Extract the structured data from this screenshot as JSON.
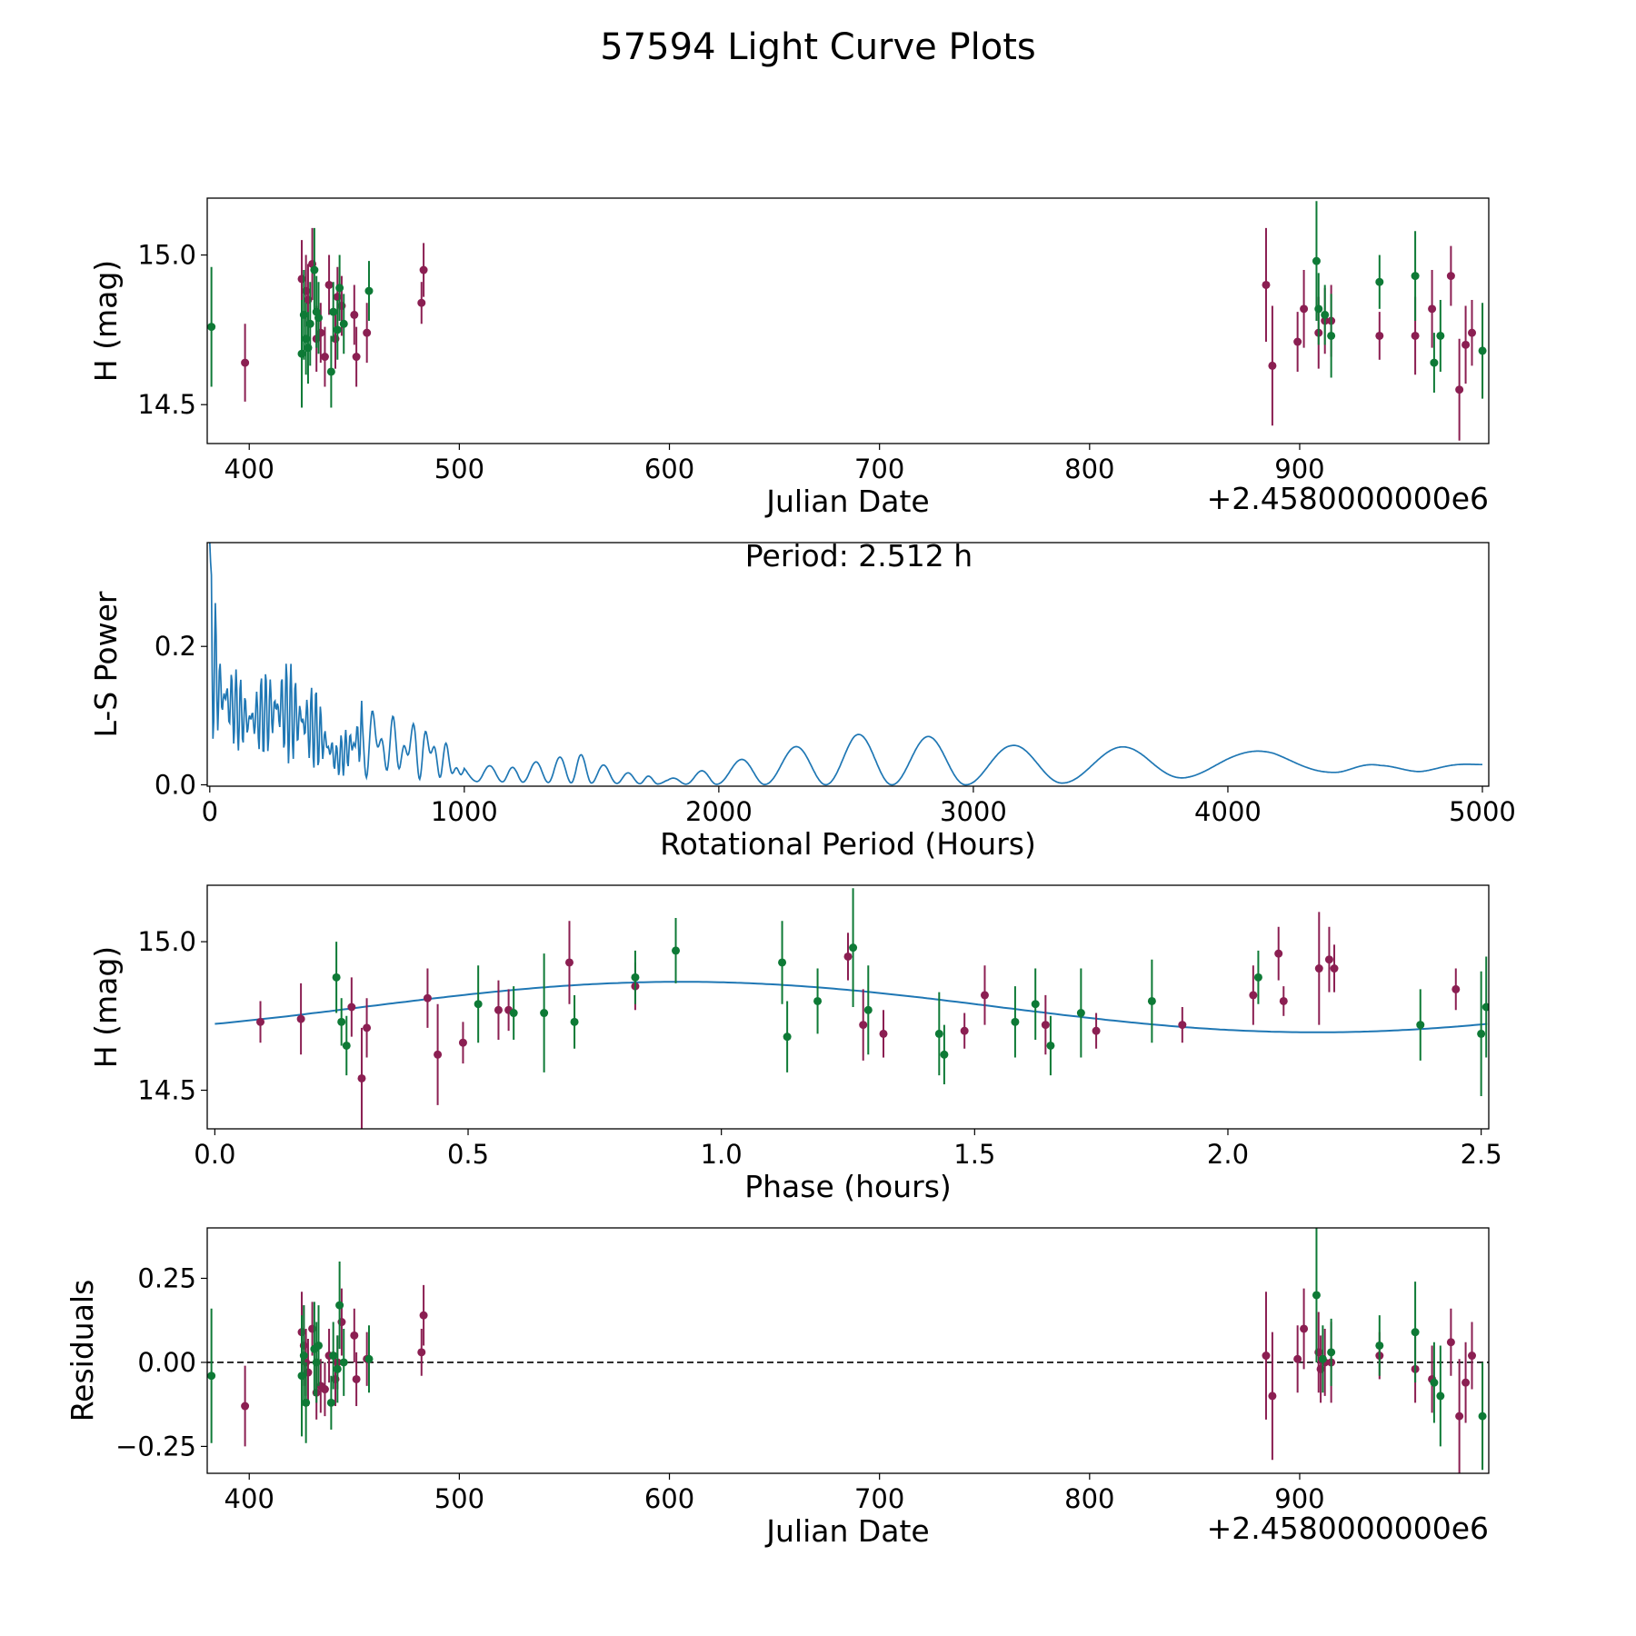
{
  "figure_title": "57594 Light Curve Plots",
  "colors": {
    "series_a": "#8b1f52",
    "series_b": "#0e7a36",
    "fit": "#1f77b4",
    "axes": "#000000"
  },
  "chart_data": [
    {
      "type": "scatter",
      "panel": "Light curve",
      "xlabel": "Julian Date",
      "ylabel": "H (mag)",
      "offset_label": "+2.4580000000e6",
      "xlim": [
        380,
        990
      ],
      "ylim": [
        14.37,
        15.19
      ],
      "xticks": [
        "400",
        "500",
        "600",
        "700",
        "800",
        "900"
      ],
      "yticks": [
        "14.5",
        "15.0"
      ],
      "series": [
        {
          "name": "maroon",
          "points": [
            [
              398,
              14.64,
              0.13
            ],
            [
              425,
              14.92,
              0.13
            ],
            [
              427,
              14.88,
              0.12
            ],
            [
              428,
              14.85,
              0.12
            ],
            [
              430,
              14.97,
              0.12
            ],
            [
              432,
              14.72,
              0.11
            ],
            [
              434,
              14.74,
              0.1
            ],
            [
              436,
              14.66,
              0.1
            ],
            [
              438,
              14.9,
              0.1
            ],
            [
              441,
              14.72,
              0.1
            ],
            [
              442,
              14.86,
              0.1
            ],
            [
              444,
              14.83,
              0.1
            ],
            [
              450,
              14.8,
              0.1
            ],
            [
              451,
              14.66,
              0.1
            ],
            [
              456,
              14.74,
              0.1
            ],
            [
              482,
              14.84,
              0.07
            ],
            [
              483,
              14.95,
              0.09
            ],
            [
              884,
              14.9,
              0.19
            ],
            [
              887,
              14.63,
              0.2
            ],
            [
              899,
              14.71,
              0.1
            ],
            [
              902,
              14.82,
              0.13
            ],
            [
              909,
              14.74,
              0.12
            ],
            [
              912,
              14.78,
              0.11
            ],
            [
              915,
              14.78,
              0.12
            ],
            [
              938,
              14.73,
              0.08
            ],
            [
              955,
              14.73,
              0.13
            ],
            [
              963,
              14.82,
              0.13
            ],
            [
              972,
              14.93,
              0.1
            ],
            [
              976,
              14.55,
              0.17
            ],
            [
              979,
              14.7,
              0.13
            ],
            [
              982,
              14.74,
              0.11
            ]
          ]
        },
        {
          "name": "green",
          "points": [
            [
              382,
              14.76,
              0.2
            ],
            [
              425,
              14.67,
              0.18
            ],
            [
              426,
              14.8,
              0.15
            ],
            [
              427,
              14.72,
              0.12
            ],
            [
              428,
              14.69,
              0.12
            ],
            [
              429,
              14.77,
              0.14
            ],
            [
              431,
              14.95,
              0.14
            ],
            [
              432,
              14.81,
              0.12
            ],
            [
              433,
              14.79,
              0.12
            ],
            [
              439,
              14.61,
              0.12
            ],
            [
              440,
              14.81,
              0.1
            ],
            [
              442,
              14.75,
              0.1
            ],
            [
              443,
              14.89,
              0.11
            ],
            [
              445,
              14.77,
              0.1
            ],
            [
              457,
              14.88,
              0.1
            ],
            [
              908,
              14.98,
              0.2
            ],
            [
              909,
              14.82,
              0.12
            ],
            [
              912,
              14.8,
              0.1
            ],
            [
              915,
              14.73,
              0.14
            ],
            [
              938,
              14.91,
              0.09
            ],
            [
              955,
              14.93,
              0.15
            ],
            [
              964,
              14.64,
              0.1
            ],
            [
              967,
              14.73,
              0.12
            ],
            [
              987,
              14.68,
              0.16
            ]
          ]
        }
      ]
    },
    {
      "type": "line",
      "panel": "Periodogram",
      "annotation": "Period: 2.512 h",
      "xlabel": "Rotational Period (Hours)",
      "ylabel": "L-S Power",
      "xlim": [
        -10,
        5025
      ],
      "ylim": [
        -0.002,
        0.35
      ],
      "xticks": [
        "0",
        "1000",
        "2000",
        "3000",
        "4000",
        "5000"
      ],
      "yticks": [
        "0.0",
        "0.2"
      ],
      "peak_power": 0.35,
      "envelope": [
        [
          0,
          0.35
        ],
        [
          40,
          0.21
        ],
        [
          100,
          0.17
        ],
        [
          150,
          0.14
        ],
        [
          280,
          0.19
        ],
        [
          420,
          0.14
        ],
        [
          500,
          0.06
        ],
        [
          600,
          0.135
        ],
        [
          700,
          0.1
        ],
        [
          850,
          0.095
        ],
        [
          1000,
          0.03
        ],
        [
          1200,
          0.025
        ],
        [
          1300,
          0.035
        ],
        [
          1450,
          0.045
        ],
        [
          1600,
          0.02
        ],
        [
          1800,
          0.008
        ],
        [
          1950,
          0.022
        ],
        [
          2100,
          0.038
        ],
        [
          2300,
          0.055
        ],
        [
          2530,
          0.073
        ],
        [
          2820,
          0.07
        ],
        [
          3150,
          0.057
        ],
        [
          3570,
          0.055
        ],
        [
          4180,
          0.048
        ],
        [
          4600,
          0.028
        ],
        [
          5000,
          0.03
        ]
      ],
      "baseline": [
        [
          0,
          0.06
        ],
        [
          500,
          0.012
        ],
        [
          1000,
          0.005
        ],
        [
          1800,
          0.001
        ],
        [
          2500,
          0.0
        ],
        [
          3000,
          0.0
        ],
        [
          3700,
          0.005
        ],
        [
          4000,
          0.017
        ],
        [
          4450,
          0.018
        ],
        [
          4750,
          0.019
        ],
        [
          5000,
          0.028
        ]
      ],
      "minima": [
        1050,
        1150,
        1230,
        1330,
        1420,
        1500,
        1600,
        1690,
        1760,
        1870,
        1990,
        2180,
        2420,
        2680,
        2970,
        3350,
        3830,
        4420,
        4760
      ]
    },
    {
      "type": "scatter",
      "panel": "Phased light curve",
      "xlabel": "Phase (hours)",
      "ylabel": "H (mag)",
      "xlim": [
        -0.015,
        2.515
      ],
      "ylim": [
        14.37,
        15.19
      ],
      "xticks": [
        "0.0",
        "0.5",
        "1.0",
        "1.5",
        "2.0",
        "2.5"
      ],
      "yticks": [
        "14.5",
        "15.0"
      ],
      "fit": {
        "period": 2.512,
        "mean": 14.78,
        "amplitude": 0.085,
        "peak_phase": 0.92
      },
      "series": [
        {
          "name": "maroon",
          "points": [
            [
              0.09,
              14.73,
              0.07
            ],
            [
              0.17,
              14.74,
              0.12
            ],
            [
              0.27,
              14.78,
              0.1
            ],
            [
              0.29,
              14.54,
              0.17
            ],
            [
              0.3,
              14.71,
              0.1
            ],
            [
              0.42,
              14.81,
              0.1
            ],
            [
              0.44,
              14.62,
              0.17
            ],
            [
              0.49,
              14.66,
              0.07
            ],
            [
              0.56,
              14.77,
              0.1
            ],
            [
              0.58,
              14.77,
              0.07
            ],
            [
              0.7,
              14.93,
              0.14
            ],
            [
              0.83,
              14.85,
              0.08
            ],
            [
              1.25,
              14.95,
              0.08
            ],
            [
              1.28,
              14.72,
              0.12
            ],
            [
              1.32,
              14.69,
              0.08
            ],
            [
              1.48,
              14.7,
              0.06
            ],
            [
              1.52,
              14.82,
              0.1
            ],
            [
              1.64,
              14.72,
              0.1
            ],
            [
              1.74,
              14.7,
              0.06
            ],
            [
              1.91,
              14.72,
              0.06
            ],
            [
              2.05,
              14.82,
              0.1
            ],
            [
              2.1,
              14.96,
              0.09
            ],
            [
              2.11,
              14.8,
              0.05
            ],
            [
              2.18,
              14.91,
              0.19
            ],
            [
              2.21,
              14.91,
              0.08
            ],
            [
              2.2,
              14.94,
              0.11
            ],
            [
              2.45,
              14.84,
              0.07
            ]
          ]
        },
        {
          "name": "green",
          "points": [
            [
              0.24,
              14.88,
              0.12
            ],
            [
              0.25,
              14.73,
              0.08
            ],
            [
              0.26,
              14.65,
              0.1
            ],
            [
              0.52,
              14.79,
              0.13
            ],
            [
              0.59,
              14.76,
              0.09
            ],
            [
              0.65,
              14.76,
              0.2
            ],
            [
              0.71,
              14.73,
              0.09
            ],
            [
              0.83,
              14.88,
              0.09
            ],
            [
              0.91,
              14.97,
              0.11
            ],
            [
              1.12,
              14.93,
              0.14
            ],
            [
              1.13,
              14.68,
              0.12
            ],
            [
              1.19,
              14.8,
              0.11
            ],
            [
              1.26,
              14.98,
              0.2
            ],
            [
              1.29,
              14.77,
              0.15
            ],
            [
              1.43,
              14.69,
              0.14
            ],
            [
              1.44,
              14.62,
              0.1
            ],
            [
              1.58,
              14.73,
              0.12
            ],
            [
              1.62,
              14.79,
              0.12
            ],
            [
              1.65,
              14.65,
              0.1
            ],
            [
              1.71,
              14.76,
              0.15
            ],
            [
              1.85,
              14.8,
              0.14
            ],
            [
              2.06,
              14.88,
              0.09
            ],
            [
              2.38,
              14.72,
              0.12
            ],
            [
              2.5,
              14.69,
              0.21
            ],
            [
              2.51,
              14.78,
              0.17
            ]
          ]
        }
      ]
    },
    {
      "type": "scatter",
      "panel": "Residuals",
      "xlabel": "Julian Date",
      "ylabel": "Residuals",
      "offset_label": "+2.4580000000e6",
      "xlim": [
        380,
        990
      ],
      "ylim": [
        -0.33,
        0.4
      ],
      "xticks": [
        "400",
        "500",
        "600",
        "700",
        "800",
        "900"
      ],
      "yticks": [
        "−0.25",
        "0.00",
        "0.25"
      ],
      "reference_line": 0.0,
      "series": [
        {
          "name": "maroon",
          "points": [
            [
              398,
              -0.13,
              0.12
            ],
            [
              425,
              0.09,
              0.12
            ],
            [
              426,
              0.05,
              0.12
            ],
            [
              427,
              0.0,
              0.1
            ],
            [
              428,
              -0.03,
              0.1
            ],
            [
              430,
              0.1,
              0.08
            ],
            [
              432,
              -0.09,
              0.08
            ],
            [
              434,
              -0.07,
              0.08
            ],
            [
              436,
              -0.08,
              0.08
            ],
            [
              438,
              0.02,
              0.08
            ],
            [
              441,
              -0.05,
              0.08
            ],
            [
              442,
              0.0,
              0.08
            ],
            [
              444,
              0.12,
              0.1
            ],
            [
              450,
              0.08,
              0.08
            ],
            [
              451,
              -0.05,
              0.08
            ],
            [
              456,
              0.01,
              0.08
            ],
            [
              482,
              0.03,
              0.07
            ],
            [
              483,
              0.14,
              0.09
            ],
            [
              884,
              0.02,
              0.19
            ],
            [
              887,
              -0.1,
              0.19
            ],
            [
              899,
              0.01,
              0.1
            ],
            [
              902,
              0.1,
              0.12
            ],
            [
              909,
              0.03,
              0.12
            ],
            [
              910,
              -0.02,
              0.1
            ],
            [
              912,
              0.0,
              0.1
            ],
            [
              915,
              0.0,
              0.12
            ],
            [
              938,
              0.02,
              0.07
            ],
            [
              955,
              -0.02,
              0.1
            ],
            [
              963,
              -0.05,
              0.1
            ],
            [
              972,
              0.06,
              0.1
            ],
            [
              976,
              -0.16,
              0.17
            ],
            [
              979,
              -0.06,
              0.12
            ],
            [
              982,
              0.02,
              0.1
            ]
          ]
        },
        {
          "name": "green",
          "points": [
            [
              382,
              -0.04,
              0.2
            ],
            [
              425,
              -0.04,
              0.18
            ],
            [
              426,
              0.02,
              0.15
            ],
            [
              427,
              -0.12,
              0.12
            ],
            [
              431,
              0.04,
              0.14
            ],
            [
              432,
              0.0,
              0.12
            ],
            [
              433,
              0.05,
              0.12
            ],
            [
              439,
              -0.12,
              0.08
            ],
            [
              440,
              0.02,
              0.1
            ],
            [
              442,
              -0.02,
              0.1
            ],
            [
              443,
              0.17,
              0.13
            ],
            [
              445,
              0.0,
              0.1
            ],
            [
              457,
              0.01,
              0.1
            ],
            [
              908,
              0.2,
              0.2
            ],
            [
              911,
              0.01,
              0.1
            ],
            [
              915,
              0.03,
              0.1
            ],
            [
              938,
              0.05,
              0.09
            ],
            [
              955,
              0.09,
              0.15
            ],
            [
              964,
              -0.06,
              0.12
            ],
            [
              967,
              -0.1,
              0.15
            ],
            [
              987,
              -0.16,
              0.16
            ]
          ]
        }
      ]
    }
  ]
}
